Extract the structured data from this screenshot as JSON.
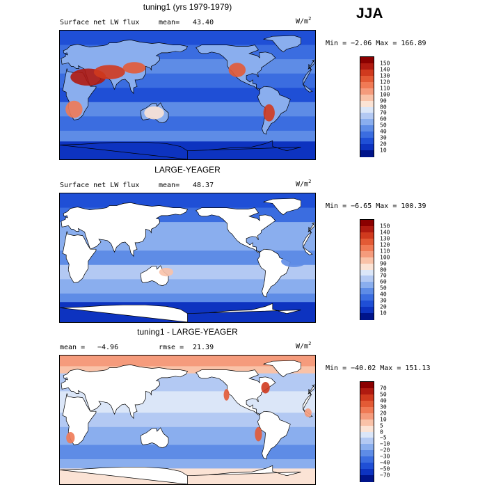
{
  "season": "JJA",
  "panels": [
    {
      "title": "tuning1 (yrs 1979-1979)",
      "field_label": "Surface net LW flux",
      "stat_label": "mean=",
      "stat_value": "43.40",
      "stat2_label": "",
      "stat2_value": "",
      "units": "W/m",
      "units_exp": "2",
      "minmax": "Min =  −2.06 Max = 166.89",
      "kind": "model",
      "colorbar": [
        "150",
        "140",
        "130",
        "120",
        "110",
        "100",
        "90",
        "80",
        "70",
        "60",
        "50",
        "40",
        "30",
        "20",
        "10"
      ],
      "colors": [
        "#8b0000",
        "#b01a10",
        "#d03a1e",
        "#e35a35",
        "#f07a55",
        "#f59b7c",
        "#f9c2a8",
        "#fbe3d5",
        "#dbe6f8",
        "#b3c9f3",
        "#8aaeee",
        "#5e8ce6",
        "#3b6de0",
        "#1f4fd6",
        "#0d33c0",
        "#00148a"
      ],
      "colors_direction": "top-to-bottom"
    },
    {
      "title": "LARGE-YEAGER",
      "field_label": "Surface net LW flux",
      "stat_label": "mean=",
      "stat_value": "48.37",
      "stat2_label": "",
      "stat2_value": "",
      "units": "W/m",
      "units_exp": "2",
      "minmax": "Min =  −6.65 Max = 100.39",
      "kind": "obs",
      "colorbar": [
        "150",
        "140",
        "130",
        "120",
        "110",
        "100",
        "90",
        "80",
        "70",
        "60",
        "50",
        "40",
        "30",
        "20",
        "10"
      ],
      "colors": [
        "#8b0000",
        "#b01a10",
        "#d03a1e",
        "#e35a35",
        "#f07a55",
        "#f59b7c",
        "#f9c2a8",
        "#fbe3d5",
        "#dbe6f8",
        "#b3c9f3",
        "#8aaeee",
        "#5e8ce6",
        "#3b6de0",
        "#1f4fd6",
        "#0d33c0",
        "#00148a"
      ],
      "colors_direction": "top-to-bottom"
    },
    {
      "title": "tuning1 - LARGE-YEAGER",
      "field_label": "",
      "stat_label": "mean =",
      "stat_value": "−4.96",
      "stat2_label": "rmse =",
      "stat2_value": "21.39",
      "units": "W/m",
      "units_exp": "2",
      "minmax": "Min = −40.02 Max = 151.13",
      "kind": "diff",
      "colorbar": [
        "70",
        "50",
        "40",
        "30",
        "20",
        "10",
        "5",
        "0",
        "−5",
        "−10",
        "−20",
        "−30",
        "−40",
        "−50",
        "−70"
      ],
      "colors": [
        "#8b0000",
        "#b01a10",
        "#d03a1e",
        "#e35a35",
        "#f07a55",
        "#f59b7c",
        "#f9c2a8",
        "#fbe3d5",
        "#dbe6f8",
        "#b3c9f3",
        "#8aaeee",
        "#5e8ce6",
        "#3b6de0",
        "#1f4fd6",
        "#0d33c0",
        "#00148a"
      ],
      "colors_direction": "top-to-bottom"
    }
  ],
  "chart_data": [
    {
      "type": "heatmap",
      "title": "tuning1 (yrs 1979-1979)",
      "variable": "Surface net LW flux",
      "units": "W/m2",
      "mean": 43.4,
      "min": -2.06,
      "max": 166.89,
      "contour_levels": [
        10,
        20,
        30,
        40,
        50,
        60,
        70,
        80,
        90,
        100,
        110,
        120,
        130,
        140,
        150
      ]
    },
    {
      "type": "heatmap",
      "title": "LARGE-YEAGER",
      "variable": "Surface net LW flux",
      "units": "W/m2",
      "mean": 48.37,
      "min": -6.65,
      "max": 100.39,
      "contour_levels": [
        10,
        20,
        30,
        40,
        50,
        60,
        70,
        80,
        90,
        100,
        110,
        120,
        130,
        140,
        150
      ]
    },
    {
      "type": "heatmap",
      "title": "tuning1 - LARGE-YEAGER",
      "units": "W/m2",
      "mean": -4.96,
      "rmse": 21.39,
      "min": -40.02,
      "max": 151.13,
      "contour_levels": [
        -70,
        -50,
        -40,
        -30,
        -20,
        -10,
        -5,
        0,
        5,
        10,
        20,
        30,
        40,
        50,
        70
      ]
    }
  ]
}
